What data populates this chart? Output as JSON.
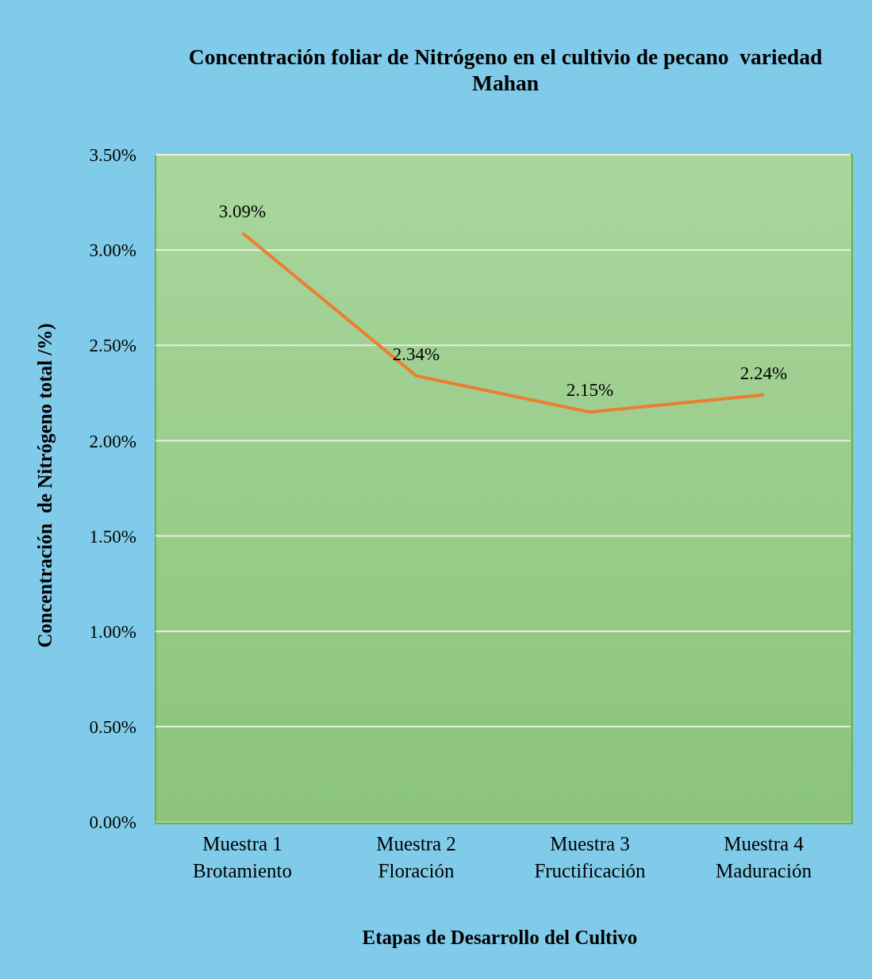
{
  "chart_data": {
    "type": "line",
    "title": "Concentración foliar de Nitrógeno en el cultivio de pecano  variedad Mahan",
    "xlabel": "Etapas de Desarrollo del Cultivo",
    "ylabel": "Concentración  de Nitrógeno total /%)",
    "categories": [
      "Muestra 1\nBrotamiento",
      "Muestra 2\nFloración",
      "Muestra 3\nFructificación",
      "Muestra 4\nMaduración"
    ],
    "values": [
      3.09,
      2.34,
      2.15,
      2.24
    ],
    "value_labels": [
      "3.09%",
      "2.34%",
      "2.15%",
      "2.24%"
    ],
    "color": "#ed7d31",
    "ylim": [
      0,
      3.5
    ],
    "yticks": [
      {
        "value": 0,
        "label": "0.00%"
      },
      {
        "value": 0.5,
        "label": "0.50%"
      },
      {
        "value": 1,
        "label": "1.00%"
      },
      {
        "value": 1.5,
        "label": "1.50%"
      },
      {
        "value": 2,
        "label": "2.00%"
      },
      {
        "value": 2.5,
        "label": "2.50%"
      },
      {
        "value": 3,
        "label": "3.00%"
      },
      {
        "value": 3.5,
        "label": "3.50%"
      }
    ],
    "grid": "y",
    "marker": "none",
    "line_style": "solid",
    "legend": false
  }
}
